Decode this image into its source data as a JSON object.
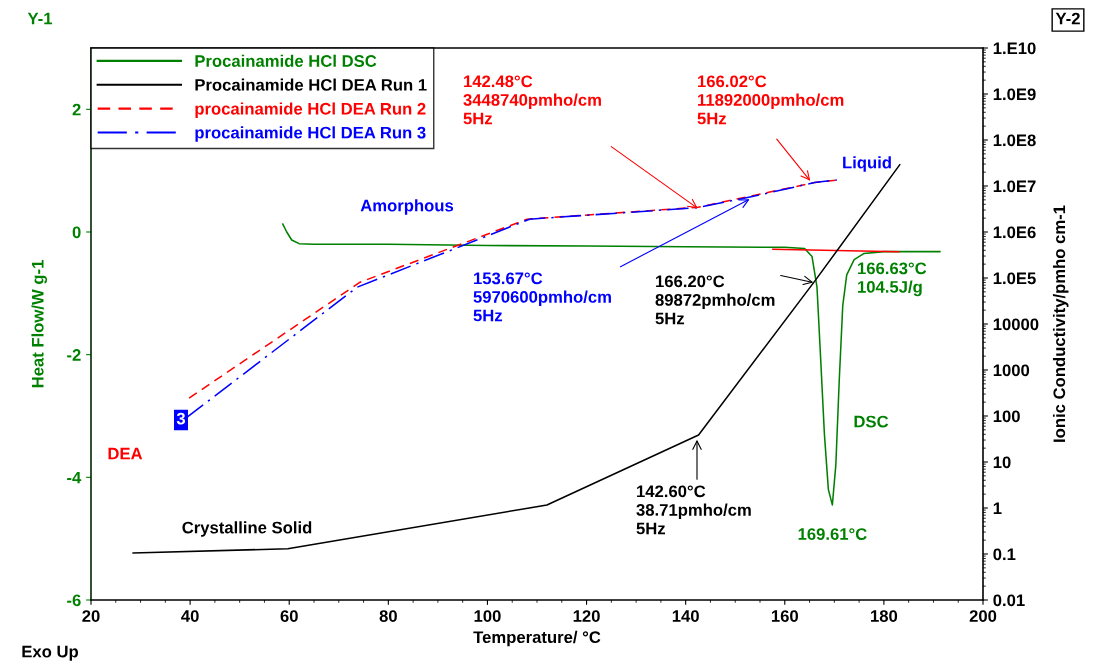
{
  "chart_data": {
    "type": "line",
    "xlabel": "Temperature/ °C",
    "ylabel": "Heat Flow/W g-1",
    "y2label": "Ionic Conductivity/pmho cm-1",
    "xlim": [
      20,
      200
    ],
    "xticks": [
      20,
      40,
      60,
      80,
      100,
      120,
      140,
      160,
      180,
      200
    ],
    "ylim": [
      -6,
      3
    ],
    "yticks": [
      -6,
      -4,
      -2,
      0,
      2
    ],
    "y2lim": [
      0.01,
      10000000000
    ],
    "log": "y2",
    "y2ticks": [
      0.01,
      0.1,
      1,
      10,
      100,
      1000,
      10000,
      {
        "value": 100000,
        "label": "1.0E5"
      },
      {
        "value": 1000000,
        "label": "1.0E6"
      },
      {
        "value": 10000000,
        "label": "1.0E7"
      },
      {
        "value": 100000000,
        "label": "1.0E8"
      },
      {
        "value": 1000000000,
        "label": "1.0E9"
      },
      {
        "value": 10000000000,
        "label": "1.E10"
      }
    ],
    "grid": false,
    "legend": "top left",
    "series": [
      {
        "name": "Procainamide HCl DSC",
        "color": "#008000",
        "line_style": "solid",
        "x": [
          58.7,
          59.5,
          60.5,
          62,
          65,
          80,
          100,
          120,
          140,
          160,
          164,
          165.5,
          166.5,
          167.2,
          168,
          168.8,
          169.6,
          170.3,
          171,
          171.7,
          172.5,
          174,
          176,
          180,
          191.3
        ],
        "values": [
          0.13,
          0.0,
          -0.13,
          -0.19,
          -0.2,
          -0.2,
          -0.22,
          -0.23,
          -0.24,
          -0.25,
          -0.27,
          -0.4,
          -0.9,
          -2,
          -3.3,
          -4.2,
          -4.45,
          -3.8,
          -2.4,
          -1.2,
          -0.7,
          -0.45,
          -0.35,
          -0.32,
          -0.32
        ]
      },
      {
        "name": "Procainamide HCl DEA Run 1",
        "color": "#000000",
        "axis": "y2",
        "line_style": "solid",
        "x": [
          28.5,
          59.7,
          112,
          142.6,
          166.2,
          183.2
        ],
        "values": [
          0.105,
          0.13,
          1.16,
          38.71,
          89872,
          29000000
        ]
      },
      {
        "name": "procainamide HCl DEA Run 2",
        "color": "#ff0000",
        "axis": "y2",
        "line_style": "dashed",
        "x": [
          39.8,
          74.3,
          108,
          142.48,
          166.02,
          170.5
        ],
        "values": [
          245,
          81000,
          1900000,
          3448740,
          11892000,
          13500000
        ]
      },
      {
        "name": "procainamide HCl DEA Run 3",
        "color": "#0000ff",
        "axis": "y2",
        "line_style": "dashdot",
        "x": [
          39.2,
          73.7,
          108.5,
          142.5,
          153.67,
          166,
          170.5
        ],
        "values": [
          91,
          63000,
          1900000,
          3400000,
          5970600,
          11900000,
          13500000
        ]
      },
      {
        "color": "#ff0000",
        "line_style": "solid",
        "x": [
          157.6,
          183.0
        ],
        "values": [
          -0.28,
          -0.32
        ]
      }
    ],
    "annotations": [
      "142.48°C\n3448740pmho/cm\n5Hz",
      "166.02°C\n11892000pmho/cm\n5Hz",
      "153.67°C\n5970600pmho/cm\n5Hz",
      "166.20°C\n89872pmho/cm\n5Hz",
      "142.60°C\n38.71pmho/cm\n5Hz",
      {
        "text": "169.61°C",
        "x": 169.61,
        "y": -4.45
      },
      "166.63°C\n104.5J/g",
      "Amorphous",
      "Liquid",
      "DEA",
      "DSC",
      "Crystalline Solid",
      "3",
      "Y-1",
      "Y-2",
      "Exo Up"
    ]
  }
}
